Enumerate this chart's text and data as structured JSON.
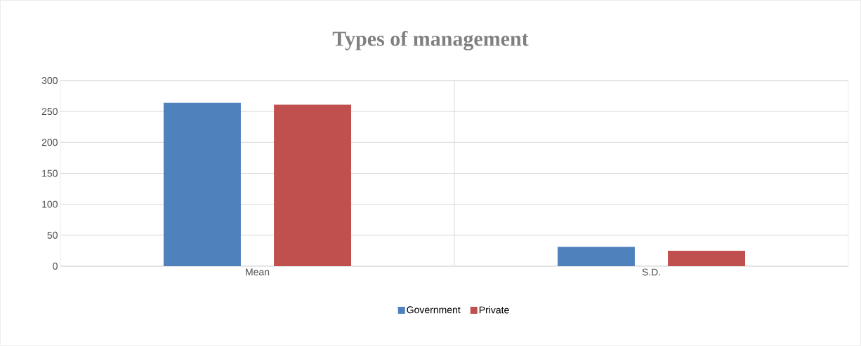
{
  "chart_data": {
    "type": "bar",
    "title": "Types of management",
    "categories": [
      "Mean",
      "S.D."
    ],
    "series": [
      {
        "name": "Government",
        "color": "#4f81bd",
        "values": [
          264,
          31
        ]
      },
      {
        "name": "Private",
        "color": "#c0504d",
        "values": [
          261,
          25
        ]
      }
    ],
    "ylim": [
      0,
      300
    ],
    "yticks": [
      0,
      50,
      100,
      150,
      200,
      250,
      300
    ],
    "grid": true,
    "legend": "bottom"
  }
}
